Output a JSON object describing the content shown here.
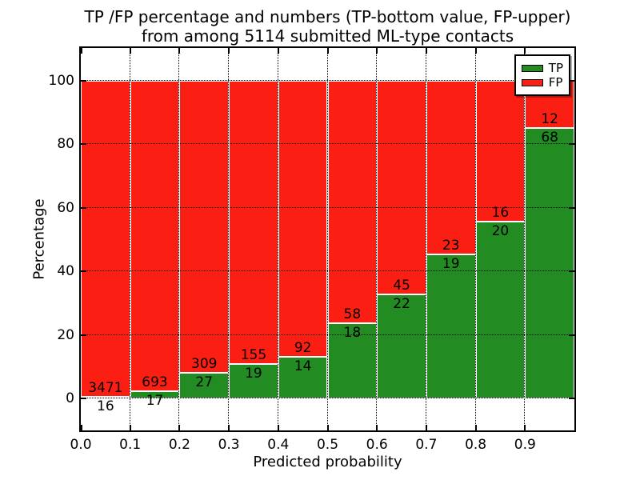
{
  "title": {
    "line1": "TP /FP percentage and numbers (TP-bottom value, FP-upper)",
    "line2": "from among 5114 submitted ML-type contacts"
  },
  "chart_data": {
    "type": "bar",
    "stacked": true,
    "normalized_to_percent": true,
    "title": "TP /FP percentage and numbers (TP-bottom value, FP-upper) from among 5114 submitted ML-type contacts",
    "total_contacts": 5114,
    "xlabel": "Predicted probability",
    "ylabel": "Percentage",
    "categories": [
      "0.0-0.1",
      "0.1-0.2",
      "0.2-0.3",
      "0.3-0.4",
      "0.4-0.5",
      "0.5-0.6",
      "0.6-0.7",
      "0.7-0.8",
      "0.8-0.9",
      "0.9-1.0"
    ],
    "x_tick_labels": [
      "0.0",
      "0.1",
      "0.2",
      "0.3",
      "0.4",
      "0.5",
      "0.6",
      "0.7",
      "0.8",
      "0.9"
    ],
    "y_tick_labels": [
      "0",
      "20",
      "40",
      "60",
      "80",
      "100"
    ],
    "y_tick_values": [
      0,
      20,
      40,
      60,
      80,
      100
    ],
    "xlim": [
      0.0,
      1.0
    ],
    "ylim": [
      -10,
      110.25
    ],
    "grid": "dotted",
    "series": [
      {
        "name": "TP",
        "color": "#228b22",
        "counts": [
          16,
          17,
          27,
          19,
          14,
          18,
          22,
          19,
          20,
          68
        ]
      },
      {
        "name": "FP",
        "color": "#fb1e12",
        "counts": [
          3471,
          693,
          309,
          155,
          92,
          58,
          45,
          23,
          16,
          12
        ]
      }
    ],
    "tp_percent": [
      0.46,
      2.39,
      8.04,
      10.92,
      13.21,
      23.68,
      32.84,
      45.24,
      55.56,
      85.0
    ],
    "legend": {
      "position": "upper right",
      "labels": [
        "TP",
        "FP"
      ]
    }
  }
}
